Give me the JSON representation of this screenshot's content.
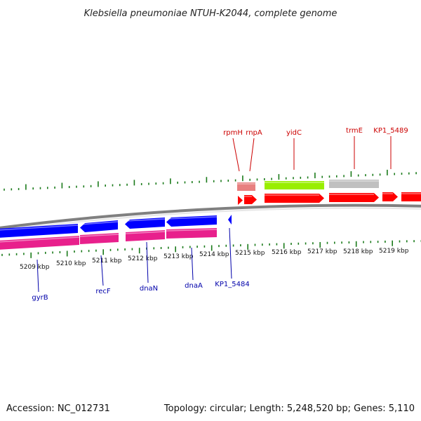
{
  "title": "Klebsiella pneumoniae NTUH-K2044, complete genome",
  "footer": {
    "accession": "Accession: NC_012731",
    "summary": "Topology: circular; Length: 5,248,520 bp; Genes: 5,110"
  },
  "colors": {
    "forward_cds": "#ff0000",
    "reverse_cds": "#0000ff",
    "forward_rna": "#e88080",
    "forward_gene_green": "#99ee00",
    "forward_gene_gray": "#c0c0c0",
    "reverse_gene": "#e8208c",
    "backbone": "#808080",
    "tick": "#1a7a1a",
    "forward_label": "#cc0000",
    "reverse_label": "#0000aa"
  },
  "kbp_labels": [
    "5209 kbp",
    "5210 kbp",
    "5211 kbp",
    "5212 kbp",
    "5213 kbp",
    "5214 kbp",
    "5215 kbp",
    "5216 kbp",
    "5217 kbp",
    "5218 kbp",
    "5219 kbp"
  ],
  "forward_gene_labels": [
    "rpmH",
    "rnpA",
    "yidC",
    "trmE",
    "KP1_5489"
  ],
  "reverse_gene_labels": [
    "gyrB",
    "recF",
    "dnaN",
    "dnaA",
    "KP1_5484"
  ]
}
